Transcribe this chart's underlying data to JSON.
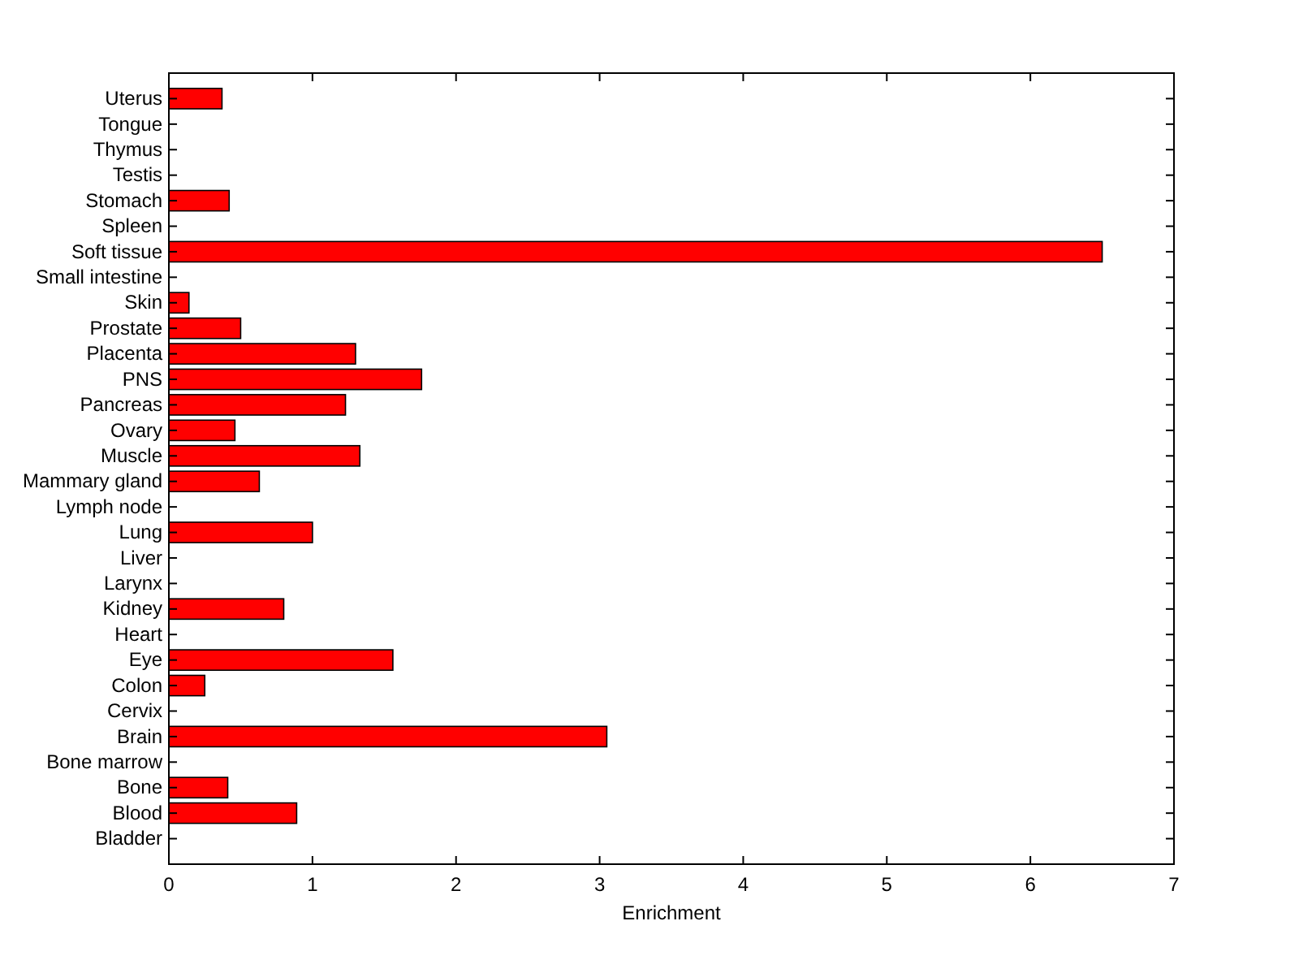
{
  "chart_data": {
    "type": "bar",
    "orientation": "horizontal",
    "xlabel": "Enrichment",
    "categories": [
      "Uterus",
      "Tongue",
      "Thymus",
      "Testis",
      "Stomach",
      "Spleen",
      "Soft tissue",
      "Small intestine",
      "Skin",
      "Prostate",
      "Placenta",
      "PNS",
      "Pancreas",
      "Ovary",
      "Muscle",
      "Mammary gland",
      "Lymph node",
      "Lung",
      "Liver",
      "Larynx",
      "Kidney",
      "Heart",
      "Eye",
      "Colon",
      "Cervix",
      "Brain",
      "Bone marrow",
      "Bone",
      "Blood",
      "Bladder"
    ],
    "values": [
      0.37,
      0,
      0,
      0,
      0.42,
      0,
      6.5,
      0,
      0.14,
      0.5,
      1.3,
      1.76,
      1.23,
      0.46,
      1.33,
      0.63,
      0,
      1.0,
      0,
      0,
      0.8,
      0,
      1.56,
      0.25,
      0,
      3.05,
      0,
      0.41,
      0.89,
      0
    ],
    "color": "#ff0000",
    "xlim": [
      0,
      7
    ],
    "xticks": [
      0,
      1,
      2,
      3,
      4,
      5,
      6,
      7
    ],
    "grid": false
  }
}
